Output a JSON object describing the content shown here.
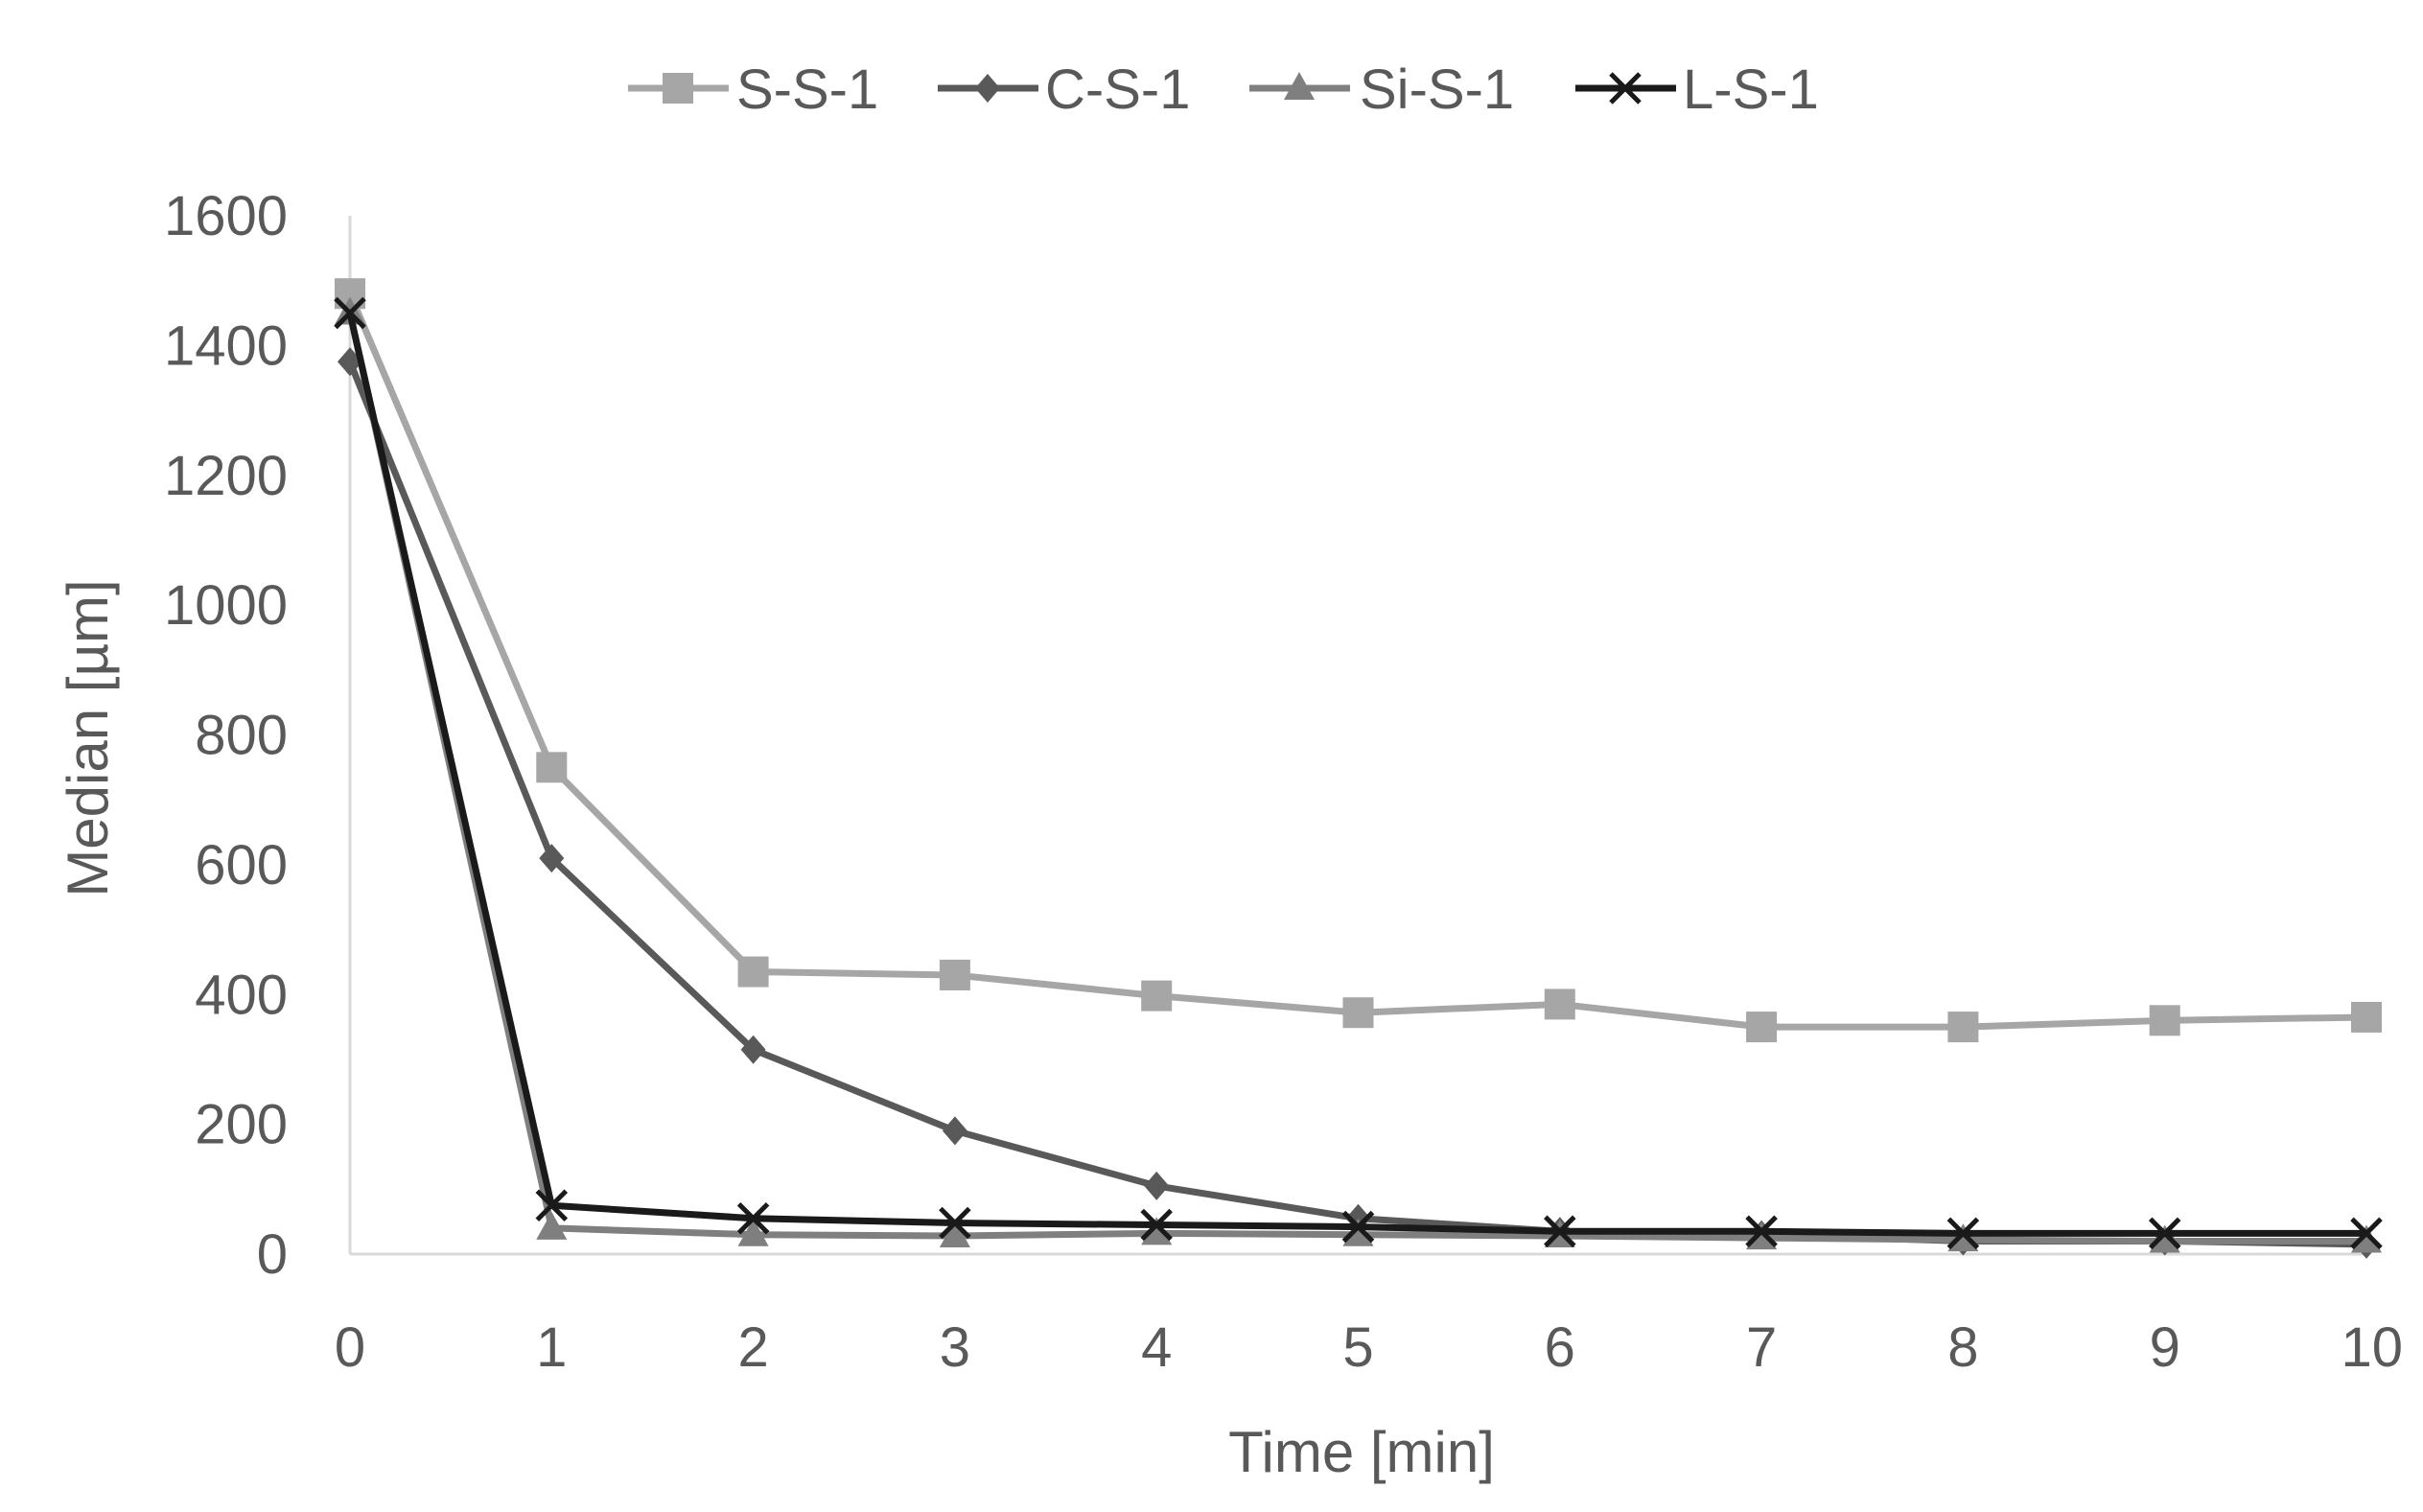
{
  "chart_data": {
    "type": "line",
    "title": "",
    "xlabel": "Time [min]",
    "ylabel": "Median [µm]",
    "x": [
      0,
      1,
      2,
      3,
      4,
      5,
      6,
      7,
      8,
      9,
      10
    ],
    "xlim": [
      0,
      10
    ],
    "ylim": [
      0,
      1600
    ],
    "yticks": [
      0,
      200,
      400,
      600,
      800,
      1000,
      1200,
      1400,
      1600
    ],
    "grid": false,
    "legend_position": "top",
    "series": [
      {
        "name": "S-S-1",
        "color": "#a6a6a6",
        "marker": "square",
        "values": [
          1480,
          750,
          435,
          430,
          398,
          372,
          385,
          350,
          350,
          360,
          365
        ]
      },
      {
        "name": "C-S-1",
        "color": "#595959",
        "marker": "diamond",
        "values": [
          1375,
          610,
          315,
          190,
          105,
          55,
          35,
          30,
          20,
          20,
          15
        ]
      },
      {
        "name": "Si-S-1",
        "color": "#7f7f7f",
        "marker": "triangle",
        "values": [
          1450,
          40,
          30,
          28,
          32,
          30,
          28,
          25,
          22,
          20,
          20
        ]
      },
      {
        "name": "L-S-1",
        "color": "#1a1a1a",
        "marker": "x",
        "values": [
          1450,
          75,
          55,
          48,
          45,
          42,
          35,
          35,
          32,
          32,
          32
        ]
      }
    ]
  }
}
